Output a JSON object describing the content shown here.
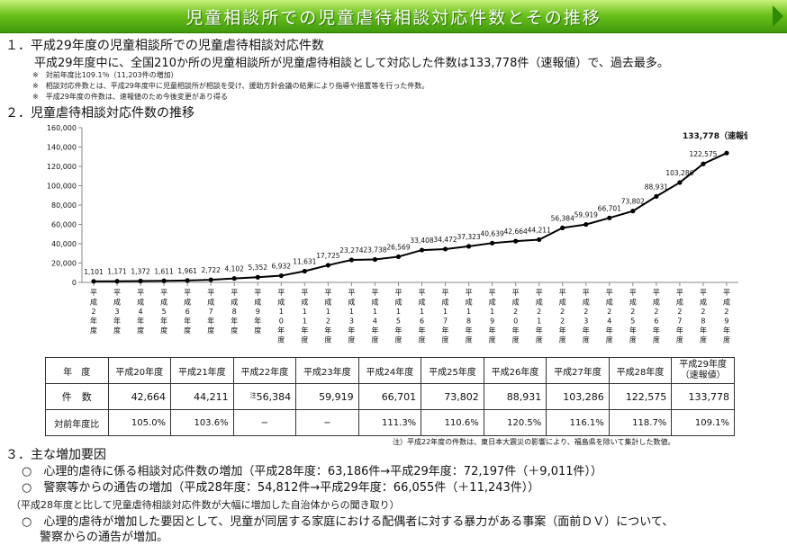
{
  "banner": {
    "title": "児童相談所での児童虐待相談対応件数とその推移"
  },
  "section1": {
    "heading": "１．平成29年度の児童相談所での児童虐待相談対応件数",
    "body": "平成29年度中に、全国210か所の児童相談所が児童虐待相談として対応した件数は133,778件（速報値）で、過去最多。",
    "notes": [
      "※　対前年度比109.1％（11,203件の増加）",
      "※　相談対応件数とは、平成29年度中に児童相談所が相談を受け、援助方針会議の結果により指導や措置等を行った件数。",
      "※　平成29年度の件数は、速報値のため今後変更があり得る"
    ]
  },
  "section2": {
    "heading": "２．児童虐待相談対応件数の推移"
  },
  "chart_data": {
    "type": "line",
    "x": [
      "平成2年度",
      "平成3年度",
      "平成4年度",
      "平成5年度",
      "平成6年度",
      "平成7年度",
      "平成8年度",
      "平成9年度",
      "平成10年度",
      "平成11年度",
      "平成12年度",
      "平成13年度",
      "平成14年度",
      "平成15年度",
      "平成16年度",
      "平成17年度",
      "平成18年度",
      "平成19年度",
      "平成20年度",
      "平成21年度",
      "平成22年度",
      "平成23年度",
      "平成24年度",
      "平成25年度",
      "平成26年度",
      "平成27年度",
      "平成28年度",
      "平成29年度"
    ],
    "x_tick_labels": [
      "平成2年度",
      "平成3年度",
      "平成4年度",
      "平成5年度",
      "平成6年度",
      "平成7年度",
      "平成8年度",
      "平成9年度",
      "平成10年度",
      "平成11年度",
      "平成12年度",
      "平成13年度",
      "平成14年度",
      "平成15年度",
      "平成16年度",
      "平成17年度",
      "平成18年度",
      "平成19年度",
      "平成20年度",
      "平成21年度",
      "平成22年度",
      "平成23年度",
      "平成24年度",
      "平成25年度",
      "平成26年度",
      "平成27年度",
      "平成28年度",
      "平成29年度"
    ],
    "values": [
      1101,
      1171,
      1372,
      1611,
      1961,
      2722,
      4102,
      5352,
      6932,
      11631,
      17725,
      23274,
      23738,
      26569,
      33408,
      34472,
      37323,
      40639,
      42664,
      44211,
      56384,
      59919,
      66701,
      73802,
      88931,
      103286,
      122575,
      133778
    ],
    "data_labels": [
      "1,101",
      "1,171",
      "1,372",
      "1,611",
      "1,961",
      "2,722",
      "4,102",
      "5,352",
      "6,932",
      "11,631",
      "17,725",
      "23,274",
      "23,738",
      "26,569",
      "33,408",
      "34,472",
      "37,323",
      "40,639",
      "42,664",
      "44,211",
      "56,384",
      "59,919",
      "66,701",
      "73,802",
      "88,931",
      "103,286",
      "122,575",
      "133,778"
    ],
    "last_label_suffix": "（速報値）",
    "ylim": [
      0,
      160000
    ],
    "y_ticks": [
      0,
      20000,
      40000,
      60000,
      80000,
      100000,
      120000,
      140000,
      160000
    ],
    "y_tick_labels": [
      "0",
      "20,000",
      "40,000",
      "60,000",
      "80,000",
      "100,000",
      "120,000",
      "140,000",
      "160,000"
    ],
    "grid": false,
    "line_color": "#000000"
  },
  "table": {
    "col_header": "年　度",
    "years": [
      "平成20年度",
      "平成21年度",
      "平成22年度",
      "平成23年度",
      "平成24年度",
      "平成25年度",
      "平成26年度",
      "平成27年度",
      "平成28年度",
      "平成29年度"
    ],
    "last_year_sub": "（速報値）",
    "row_count_label": "件　数",
    "counts": [
      "42,664",
      "44,211",
      "56,384",
      "59,919",
      "66,701",
      "73,802",
      "88,931",
      "103,286",
      "122,575",
      "133,778"
    ],
    "count_note_mark": "注",
    "row_ratio_label": "対前年度比",
    "ratios": [
      "105.0%",
      "103.6%",
      "−",
      "−",
      "111.3%",
      "110.6%",
      "120.5%",
      "116.1%",
      "118.7%",
      "109.1%"
    ],
    "footnote": "注）平成22年度の件数は、東日本大震災の影響により、福島県を除いて集計した数値。"
  },
  "section3": {
    "heading": "３．主な増加要因",
    "items": [
      "○　心理的虐待に係る相談対応件数の増加（平成28年度：63,186件→平成29年度：72,197件（＋9,011件））",
      "○　警察等からの通告の増加（平成28年度：54,812件→平成29年度：66,055件（＋11,243件））"
    ],
    "sub_heading": "（平成28年度と比して児童虐待相談対応件数が大幅に増加した自治体からの聞き取り）",
    "item3_line1": "○　心理的虐待が増加した要因として、児童が同居する家庭における配偶者に対する暴力がある事案（面前ＤＶ）について、",
    "item3_line2": "警察からの通告が増加。"
  }
}
